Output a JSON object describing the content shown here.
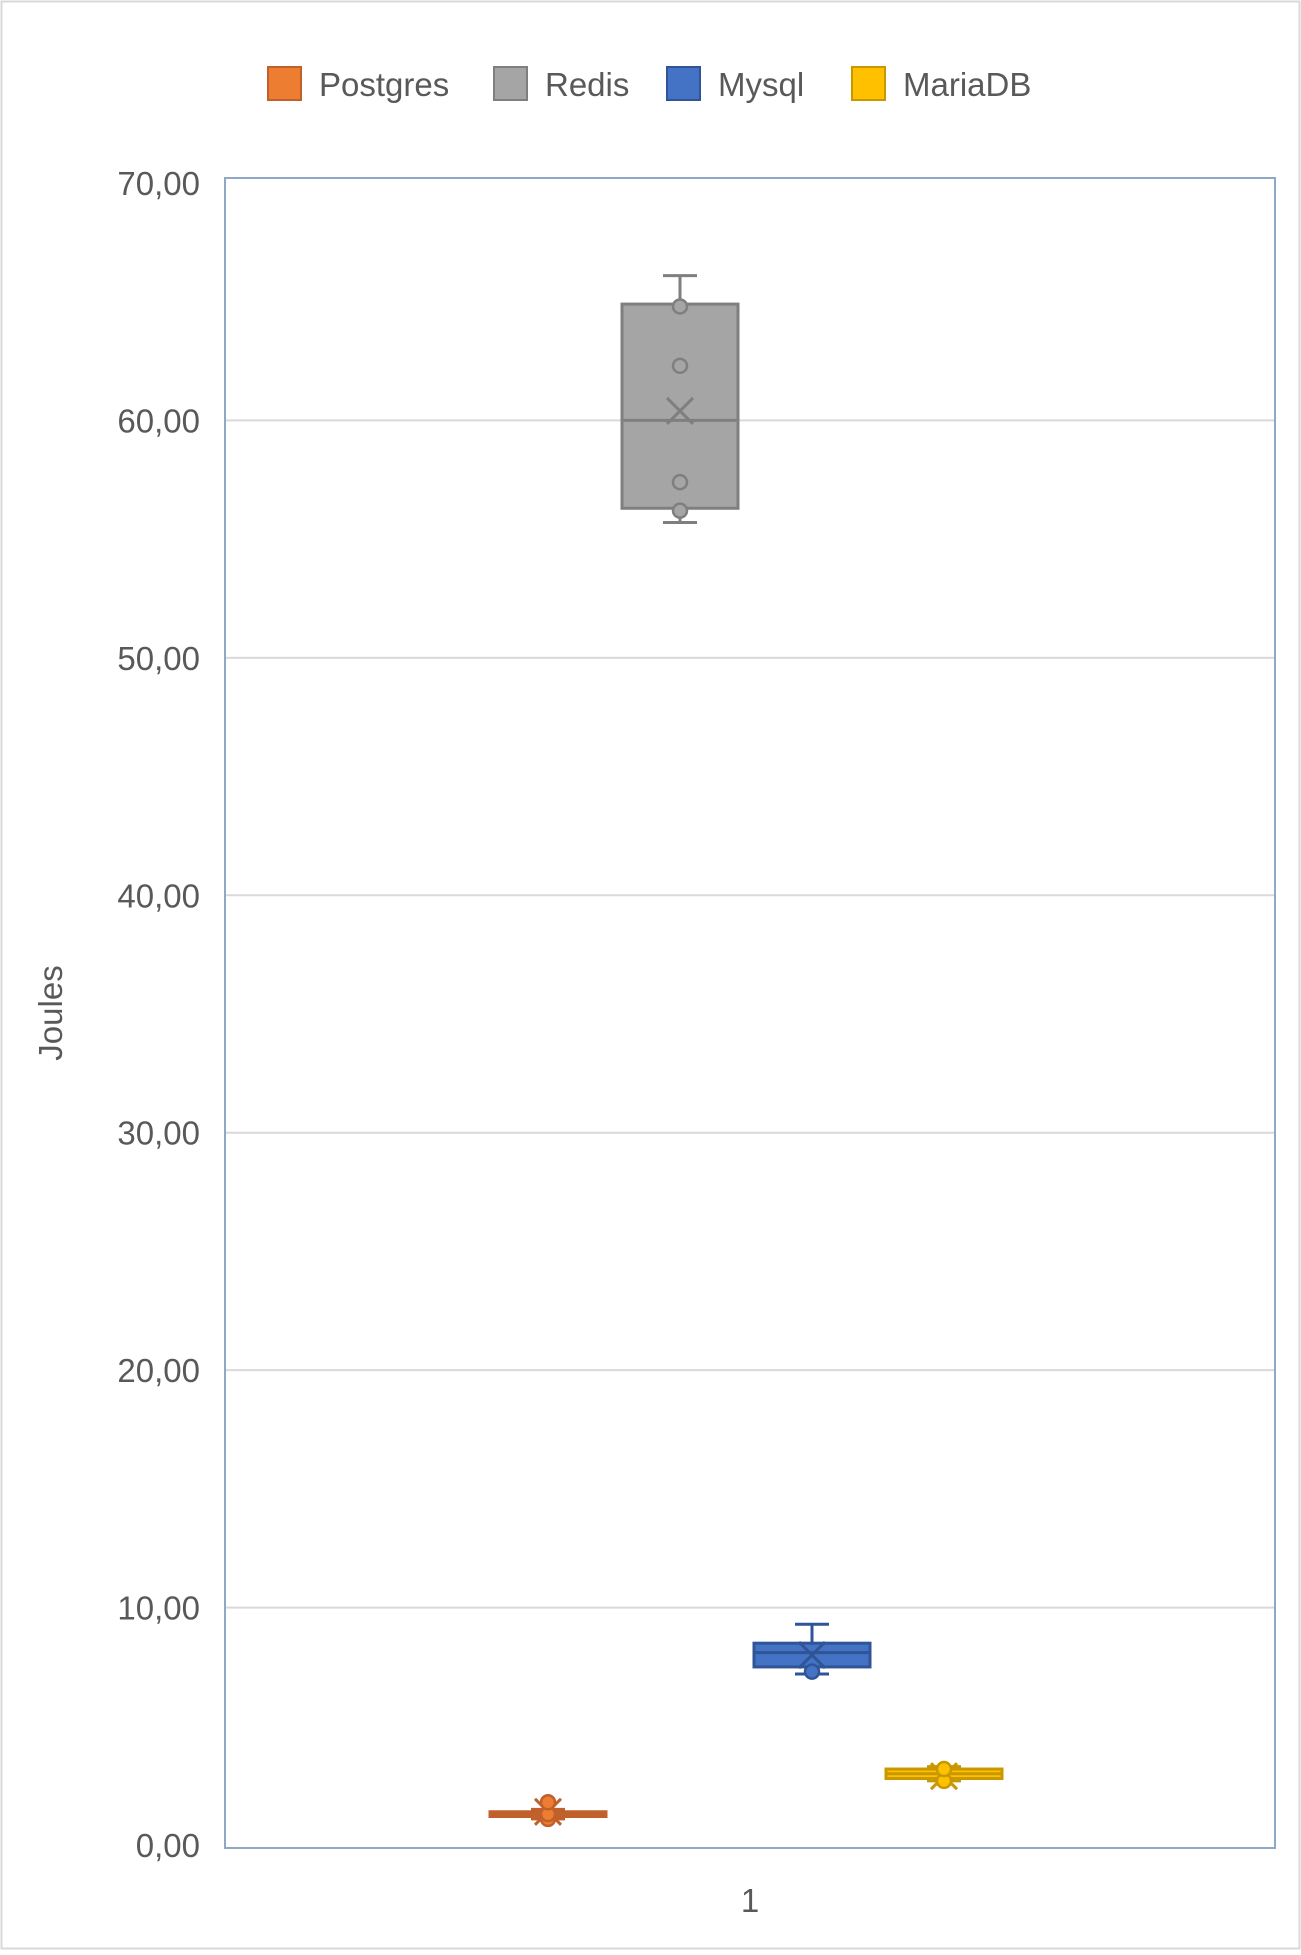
{
  "chart_data": {
    "type": "box",
    "title": "",
    "ylabel": "Joules",
    "xlabel": "",
    "categories": [
      "1"
    ],
    "ylim": [
      0,
      70
    ],
    "yticks": [
      "0,00",
      "10,00",
      "20,00",
      "30,00",
      "40,00",
      "50,00",
      "60,00",
      "70,00"
    ],
    "ytick_values": [
      0,
      10,
      20,
      30,
      40,
      50,
      60,
      70
    ],
    "grid": true,
    "legend_position": "top",
    "series": [
      {
        "name": "Postgres",
        "color": "#ED7D31",
        "stroke": "#C0602A",
        "min": 1.1,
        "q1": 1.2,
        "median": 1.3,
        "q3": 1.4,
        "max": 1.5,
        "mean": 1.4,
        "points": [
          1.1,
          1.3,
          1.8
        ]
      },
      {
        "name": "Redis",
        "color": "#A5A5A5",
        "stroke": "#7F7F7F",
        "min": 55.7,
        "q1": 56.3,
        "median": 60.0,
        "q3": 64.9,
        "max": 66.1,
        "mean": 60.4,
        "points": [
          56.2,
          57.4,
          62.3,
          64.8
        ]
      },
      {
        "name": "Mysql",
        "color": "#4472C4",
        "stroke": "#2F5597",
        "min": 7.2,
        "q1": 7.5,
        "median": 8.1,
        "q3": 8.5,
        "max": 9.3,
        "mean": 8.0,
        "points": [
          7.3
        ]
      },
      {
        "name": "MariaDB",
        "color": "#FFC000",
        "stroke": "#C99700",
        "min": 2.7,
        "q1": 2.8,
        "median": 3.0,
        "q3": 3.2,
        "max": 3.3,
        "mean": 2.9,
        "points": [
          2.7,
          3.2
        ]
      }
    ]
  }
}
